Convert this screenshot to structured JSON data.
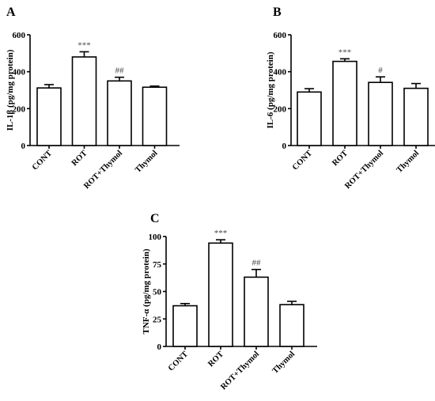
{
  "chart_data": [
    {
      "type": "bar",
      "panel": "A",
      "ylabel": "IL-1β (pg/mg protein)",
      "categories": [
        "CONT",
        "ROT",
        "ROT+Thymol",
        "Thymol"
      ],
      "values": [
        312,
        480,
        350,
        316
      ],
      "errors": [
        18,
        28,
        20,
        6
      ],
      "significance": [
        "",
        "***",
        "##",
        ""
      ],
      "ylim": [
        0,
        600
      ],
      "yticks": [
        0,
        200,
        400,
        600
      ],
      "tick_labels": [
        "0",
        "200",
        "400",
        "600"
      ],
      "colors": {
        "bar_fill": "#ffffff",
        "bar_stroke": "#000000"
      }
    },
    {
      "type": "bar",
      "panel": "B",
      "ylabel": "IL-6 (pg/mg protein)",
      "categories": [
        "CONT",
        "ROT",
        "ROT+Thymol",
        "Thymol"
      ],
      "values": [
        290,
        456,
        342,
        310
      ],
      "errors": [
        18,
        14,
        30,
        26
      ],
      "significance": [
        "",
        "***",
        "#",
        ""
      ],
      "ylim": [
        0,
        600
      ],
      "yticks": [
        0,
        200,
        400,
        600
      ],
      "tick_labels": [
        "0",
        "200",
        "400",
        "600"
      ],
      "colors": {
        "bar_fill": "#ffffff",
        "bar_stroke": "#000000"
      }
    },
    {
      "type": "bar",
      "panel": "C",
      "ylabel": "TNF-α (pg/mg protein)",
      "categories": [
        "CONT",
        "ROT",
        "ROT+Thymol",
        "Thymol"
      ],
      "values": [
        37,
        94,
        63,
        38
      ],
      "errors": [
        2,
        3,
        7,
        3
      ],
      "significance": [
        "",
        "***",
        "##",
        ""
      ],
      "ylim": [
        0,
        100
      ],
      "yticks": [
        0,
        25,
        50,
        75,
        100
      ],
      "tick_labels": [
        "0",
        "25",
        "50",
        "75",
        "100"
      ],
      "colors": {
        "bar_fill": "#ffffff",
        "bar_stroke": "#000000"
      }
    }
  ]
}
